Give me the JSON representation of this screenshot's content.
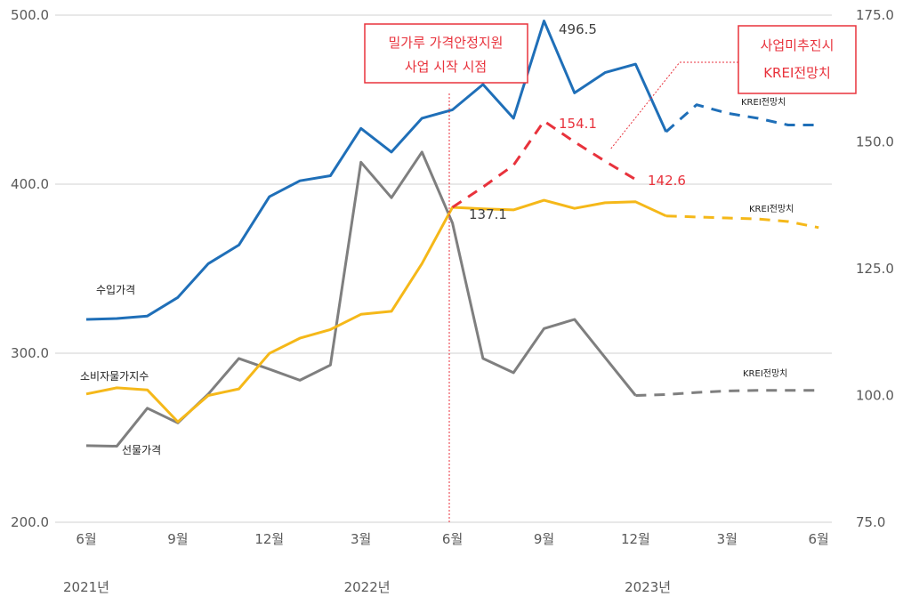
{
  "chart_data": {
    "type": "line",
    "title": "",
    "x": [
      "2021-06",
      "2021-07",
      "2021-08",
      "2021-09",
      "2021-10",
      "2021-11",
      "2021-12",
      "2022-01",
      "2022-02",
      "2022-03",
      "2022-04",
      "2022-05",
      "2022-06",
      "2022-07",
      "2022-08",
      "2022-09",
      "2022-10",
      "2022-11",
      "2022-12",
      "2023-01",
      "2023-02",
      "2023-03",
      "2023-04",
      "2023-05",
      "2023-06"
    ],
    "x_tick_labels": [
      "6월",
      "9월",
      "12월",
      "3월",
      "6월",
      "9월",
      "12월",
      "3월",
      "6월"
    ],
    "year_labels": [
      "2021년",
      "2022년",
      "2023년"
    ],
    "y_left": {
      "range": [
        200,
        500
      ],
      "ticks": [
        "200.0",
        "300.0",
        "400.0",
        "500.0"
      ]
    },
    "y_right": {
      "range": [
        75,
        175
      ],
      "ticks": [
        "75.0",
        "100.0",
        "125.0",
        "150.0",
        "175.0"
      ]
    },
    "grid": true,
    "series": [
      {
        "name": "수입가격",
        "axis": "left",
        "color": "#1f6fb8",
        "values": [
          320,
          320.5,
          322,
          333,
          353,
          364,
          392.6,
          402,
          405,
          433,
          419,
          439,
          444,
          459,
          439,
          496.5,
          454,
          466,
          471,
          431,
          null,
          null,
          null,
          null,
          null
        ],
        "forecast": [
          null,
          null,
          null,
          null,
          null,
          null,
          null,
          null,
          null,
          null,
          null,
          null,
          null,
          null,
          null,
          null,
          null,
          null,
          null,
          431,
          447,
          442,
          439,
          435,
          435
        ],
        "forecast_label": "KREI전망치"
      },
      {
        "name": "소비자물가지수",
        "axis": "right",
        "color": "#f5b819",
        "values": [
          100.3,
          101.5,
          101.1,
          94.8,
          100,
          101.3,
          108.3,
          111.3,
          113,
          116,
          116.6,
          126,
          137.1,
          136.8,
          136.6,
          138.5,
          136.9,
          138,
          138.2,
          135.4,
          null,
          null,
          null,
          null,
          null
        ],
        "forecast": [
          null,
          null,
          null,
          null,
          null,
          null,
          null,
          null,
          null,
          null,
          null,
          null,
          null,
          null,
          null,
          null,
          null,
          null,
          null,
          135.4,
          135.2,
          135,
          134.8,
          134.3,
          133.1
        ],
        "forecast_label": "KREI전망치"
      },
      {
        "name": "선물가격",
        "axis": "right",
        "color": "#7f7f7f",
        "values": [
          90.1,
          90,
          97.5,
          94.6,
          100.3,
          107.3,
          105.2,
          103,
          106,
          146,
          139,
          148,
          134,
          107.3,
          104.5,
          113.2,
          115,
          107.5,
          100,
          null,
          null,
          null,
          null,
          null,
          null
        ],
        "forecast": [
          null,
          null,
          null,
          null,
          null,
          null,
          null,
          null,
          null,
          null,
          null,
          null,
          null,
          null,
          null,
          null,
          null,
          null,
          100,
          100.2,
          100.6,
          100.9,
          101,
          101,
          101
        ],
        "forecast_label": "KREI전망치"
      },
      {
        "name": "사업미추진시 KREI전망치",
        "axis": "right",
        "color": "#e8323c",
        "dashed": true,
        "values": [
          null,
          null,
          null,
          null,
          null,
          null,
          null,
          null,
          null,
          null,
          null,
          null,
          137.1,
          141.1,
          145.4,
          154.1,
          150,
          146.2,
          142.6,
          null,
          null,
          null,
          null,
          null,
          null
        ]
      }
    ],
    "data_labels": [
      {
        "text": "496.5",
        "series": "수입가격",
        "x": "2022-09"
      },
      {
        "text": "137.1",
        "series": "소비자물가지수",
        "x": "2022-06"
      },
      {
        "text": "154.1",
        "series": "사업미추진시 KREI전망치",
        "x": "2022-09"
      },
      {
        "text": "142.6",
        "series": "사업미추진시 KREI전망치",
        "x": "2022-12"
      }
    ],
    "annotations": {
      "start_line": {
        "x": "2022-06",
        "line1": "밀가루 가격안정지원",
        "line2": "사업 시작 시점"
      },
      "no_project": {
        "line1": "사업미추진시",
        "line2": "KREI전망치"
      }
    },
    "xlabel": "",
    "ylabel": ""
  }
}
